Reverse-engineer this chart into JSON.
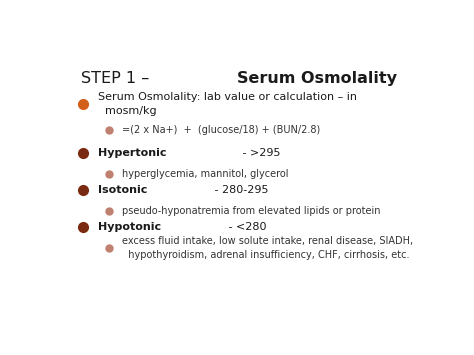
{
  "title_normal": "STEP 1 – ",
  "title_bold": "Serum Osmolality",
  "background_color": "#ffffff",
  "border_color": "#aaaaaa",
  "title_color": "#1a1a1a",
  "text_color": "#1a1a1a",
  "figsize": [
    4.74,
    3.55
  ],
  "dpi": 100,
  "title_fs": 11.5,
  "bullet1_fs": 8.0,
  "bullet2_fs": 7.0,
  "content": [
    {
      "kind": "bullet1",
      "bold": "",
      "normal": "Serum Osmolality: lab value or calculation – in\n  mosm/kg",
      "bullet_color": "#d2601a",
      "bullet_size": 7
    },
    {
      "kind": "bullet2",
      "bold": "",
      "normal": "=(2 x Na+)  +  (glucose/18) + (BUN/2.8)",
      "bullet_color": "#c08070",
      "bullet_size": 5
    },
    {
      "kind": "spacer"
    },
    {
      "kind": "bullet1",
      "bold": "Hypertonic",
      "normal": " - >295",
      "bullet_color": "#7a2a10",
      "bullet_size": 7
    },
    {
      "kind": "bullet2",
      "bold": "",
      "normal": "hyperglycemia, mannitol, glycerol",
      "bullet_color": "#c08070",
      "bullet_size": 5
    },
    {
      "kind": "bullet1",
      "bold": "Isotonic",
      "normal": " - 280-295",
      "bullet_color": "#7a2a10",
      "bullet_size": 7
    },
    {
      "kind": "bullet2",
      "bold": "",
      "normal": "pseudo-hyponatremia from elevated lipids or protein",
      "bullet_color": "#c08070",
      "bullet_size": 5
    },
    {
      "kind": "bullet1",
      "bold": "Hypotonic",
      "normal": " - <280",
      "bullet_color": "#7a2a10",
      "bullet_size": 7
    },
    {
      "kind": "bullet2",
      "bold": "",
      "normal": "excess fluid intake, low solute intake, renal disease, SIADH,\n  hypothyroidism, adrenal insufficiency, CHF, cirrhosis, etc.",
      "bullet_color": "#c08070",
      "bullet_size": 5
    }
  ]
}
